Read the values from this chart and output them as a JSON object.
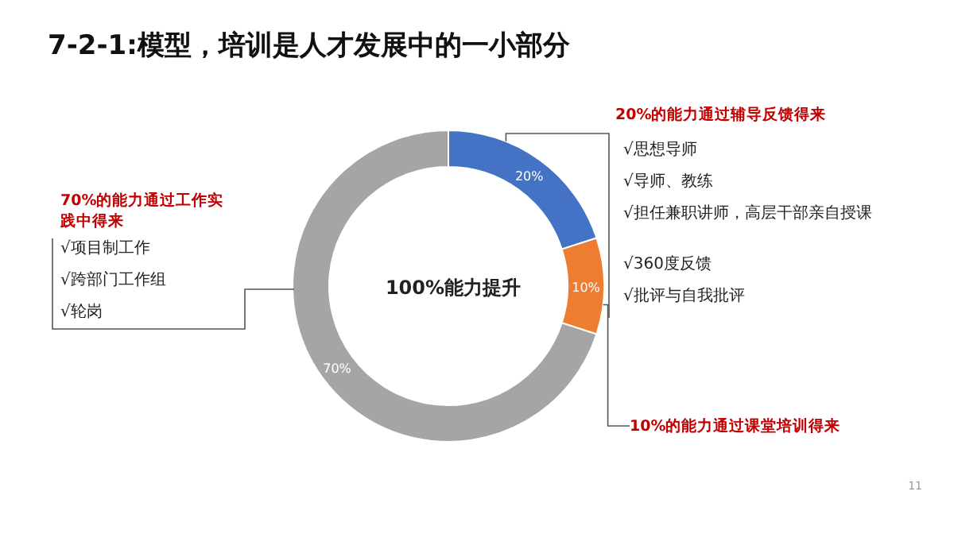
{
  "chart_data": {
    "type": "donut",
    "title": "7-2-1:模型，培训是人才发展中的一小部分",
    "categories": [
      null,
      null,
      null
    ],
    "values": [
      20,
      10,
      70
    ],
    "colors": [
      "#4472c4",
      "#ed7d31",
      "#a5a5a5"
    ],
    "value_labels": [
      "20%",
      "10%",
      "70%"
    ],
    "annotations": [
      "20%的能力通过辅导反馈得来",
      "√思想导师",
      "√导师、教练",
      "√担任兼职讲师，高层干部亲自授课",
      "√360度反馈",
      "√批评与自我批评",
      "70%的能力通过工作实践中得来",
      "√项目制工作",
      "√跨部门工作组",
      "√轮岗",
      "10%的能力通过课堂培训得来",
      "100%能力提升",
      "11"
    ]
  }
}
